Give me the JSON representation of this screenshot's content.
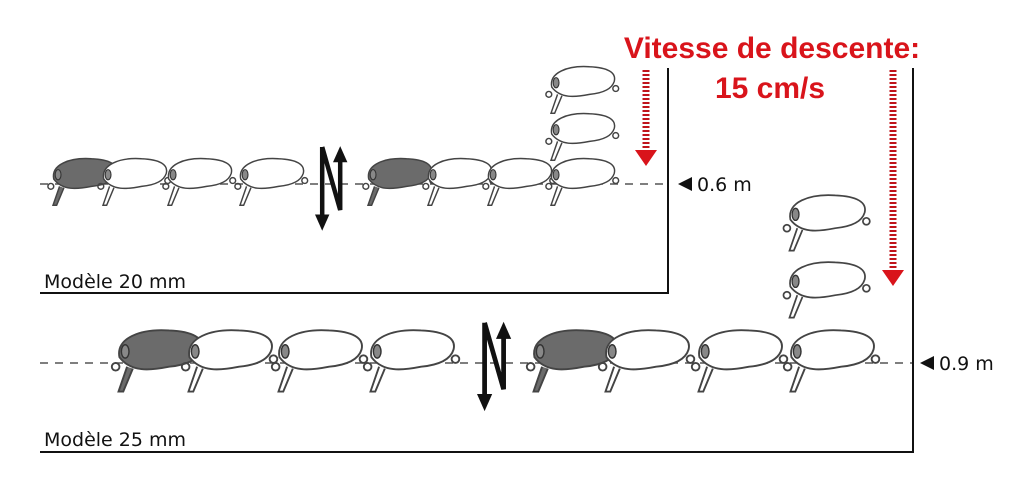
{
  "title": {
    "line1": "Vitesse de descente:",
    "line2": "15 cm/s"
  },
  "models": [
    {
      "label": "Modèle 20 mm",
      "depth": "0.6 m"
    },
    {
      "label": "Modèle 25 mm",
      "depth": "0.9 m"
    }
  ],
  "colors": {
    "accent": "#d9141b",
    "lure_dark": "#6b6b6b",
    "line": "#111111"
  }
}
